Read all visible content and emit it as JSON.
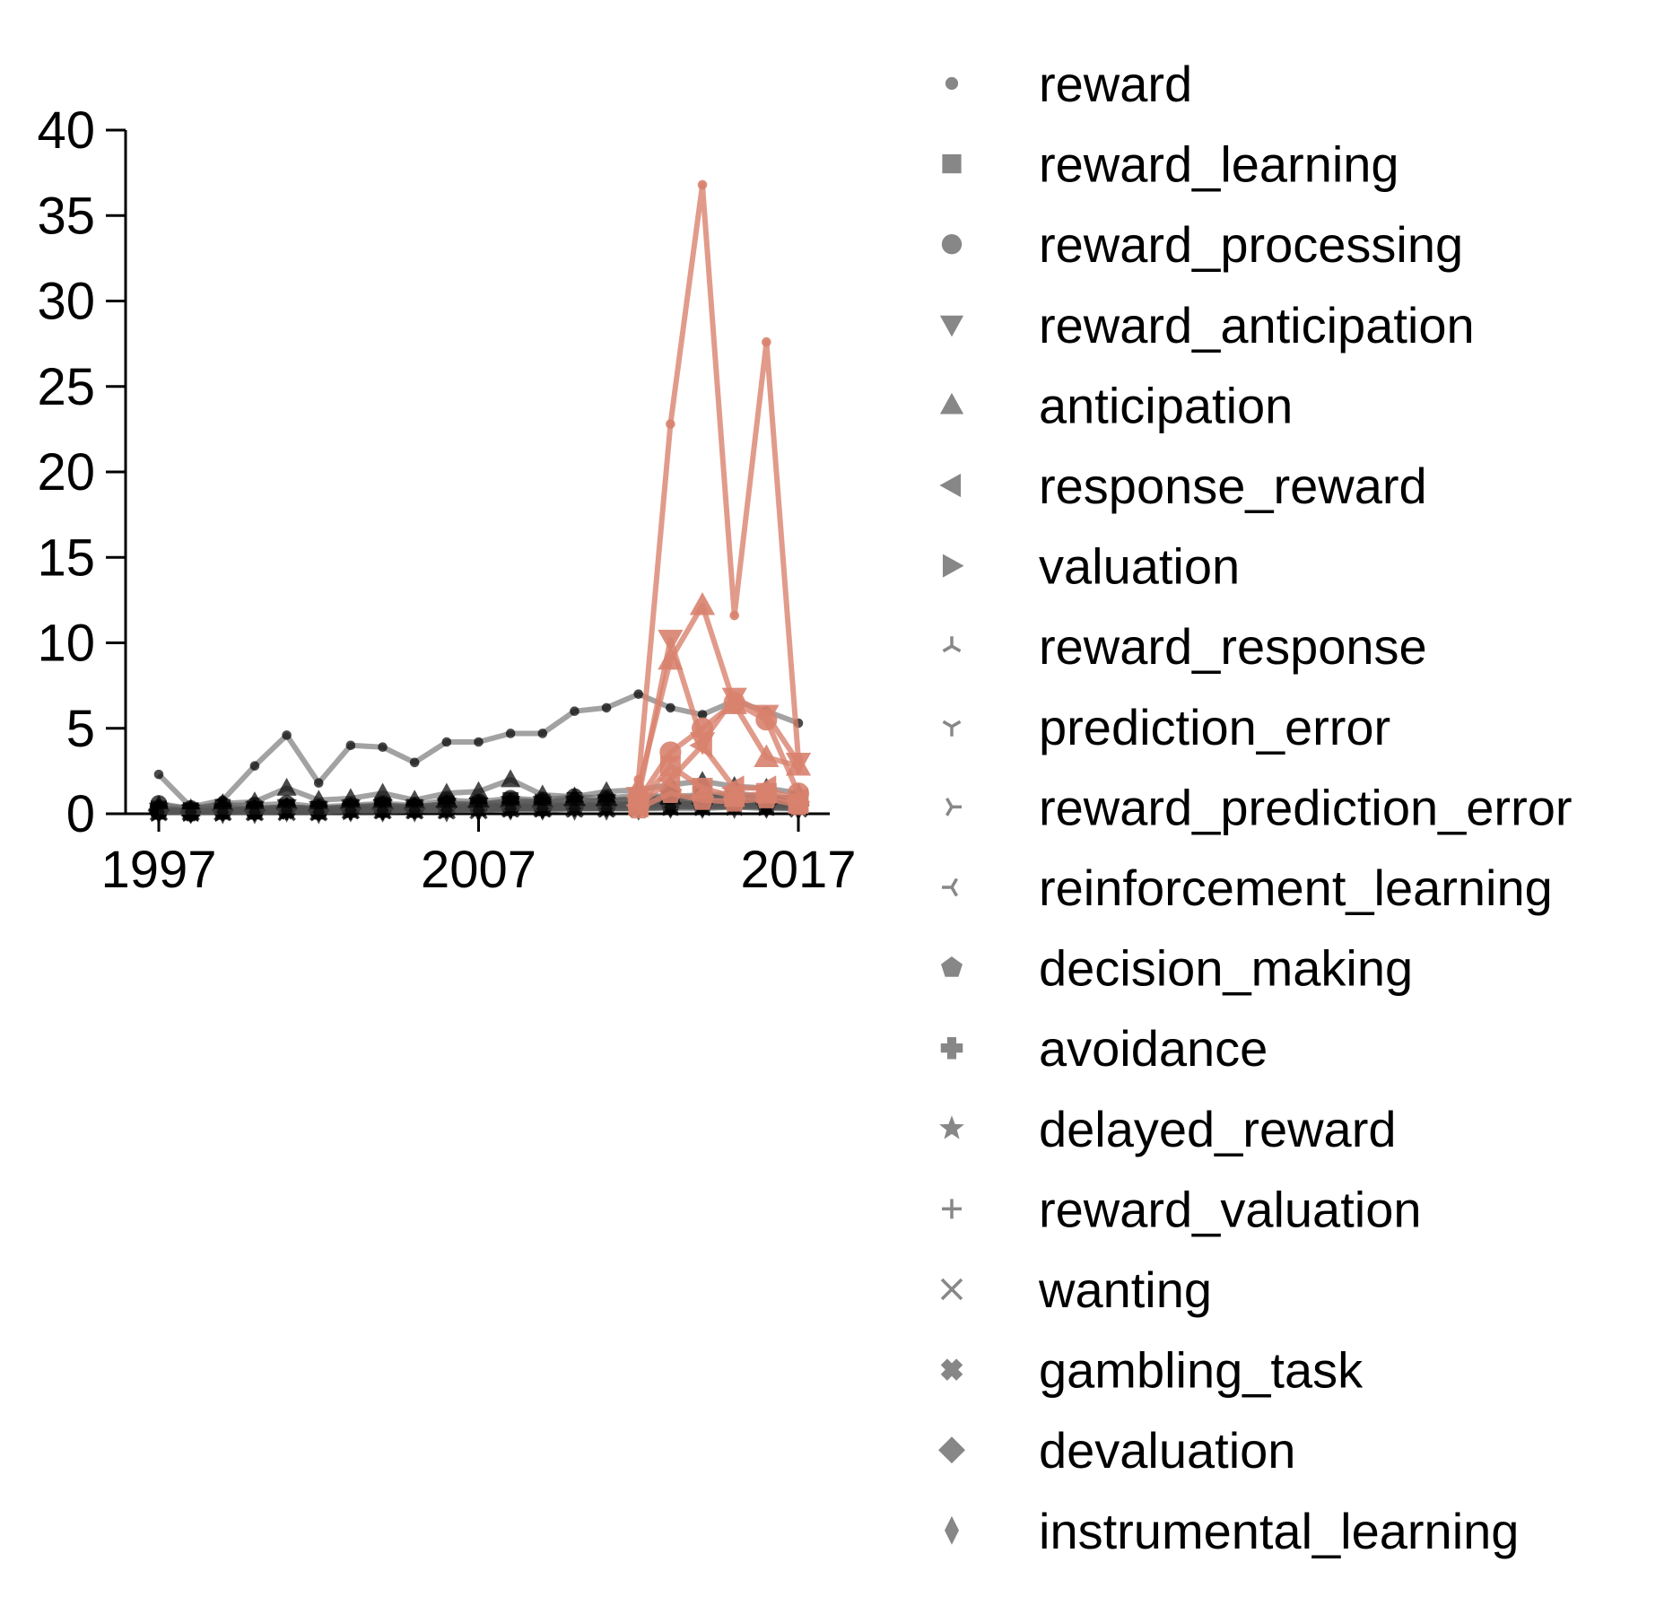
{
  "chart_data": {
    "type": "line",
    "title": "",
    "xlabel": "",
    "ylabel": "",
    "xlim": [
      1997,
      2017
    ],
    "ylim": [
      0,
      40
    ],
    "xticks": [
      1997,
      2007,
      2017
    ],
    "yticks": [
      0,
      5,
      10,
      15,
      20,
      25,
      30,
      35,
      40
    ],
    "grid": false,
    "legend_position": "right",
    "colors": {
      "gray": "#555555",
      "black": "#000000",
      "salmon": "#d9826e"
    },
    "x": [
      1997,
      1998,
      1999,
      2000,
      2001,
      2002,
      2003,
      2004,
      2005,
      2006,
      2007,
      2008,
      2009,
      2010,
      2011,
      2012,
      2013,
      2014,
      2015,
      2016,
      2017
    ],
    "series": [
      {
        "name": "reward",
        "marker": "point",
        "values": [
          2.3,
          0.4,
          0.8,
          2.8,
          4.6,
          1.8,
          4.0,
          3.9,
          3.0,
          4.2,
          4.2,
          4.7,
          4.7,
          6.0,
          6.2,
          7.0,
          6.2,
          5.8,
          6.6,
          6.0,
          5.3
        ]
      },
      {
        "name": "reward_learning",
        "marker": "square",
        "values": [
          0.3,
          0.2,
          0.4,
          0.3,
          0.4,
          0.3,
          0.4,
          0.5,
          0.4,
          0.6,
          0.5,
          0.8,
          0.7,
          0.8,
          0.7,
          0.9,
          0.8,
          0.9,
          1.0,
          0.9,
          0.8
        ]
      },
      {
        "name": "reward_processing",
        "marker": "circle",
        "values": [
          0.6,
          0.3,
          0.5,
          0.5,
          0.6,
          0.4,
          0.5,
          0.6,
          0.5,
          0.8,
          0.7,
          0.9,
          0.8,
          1.0,
          0.9,
          1.1,
          1.0,
          1.1,
          1.2,
          1.0,
          0.9
        ]
      },
      {
        "name": "reward_anticipation",
        "marker": "triangle-down",
        "values": [
          0.2,
          0.1,
          0.2,
          0.3,
          0.4,
          0.3,
          0.4,
          0.4,
          0.4,
          0.5,
          0.5,
          0.6,
          0.6,
          0.6,
          0.7,
          0.8,
          0.9,
          1.0,
          1.1,
          1.0,
          0.9
        ]
      },
      {
        "name": "anticipation",
        "marker": "triangle-up",
        "values": [
          0.5,
          0.3,
          0.6,
          0.7,
          1.5,
          0.8,
          0.9,
          1.2,
          0.8,
          1.2,
          1.3,
          2.0,
          1.1,
          1.0,
          1.3,
          1.4,
          1.7,
          1.9,
          1.6,
          1.5,
          1.2
        ]
      },
      {
        "name": "response_reward",
        "marker": "triangle-left",
        "values": [
          0.2,
          0.1,
          0.2,
          0.2,
          0.3,
          0.2,
          0.3,
          0.3,
          0.3,
          0.4,
          0.4,
          0.5,
          0.4,
          0.5,
          0.5,
          0.6,
          0.6,
          0.6,
          0.7,
          0.6,
          0.6
        ]
      },
      {
        "name": "valuation",
        "marker": "triangle-right",
        "values": [
          0.1,
          0.1,
          0.1,
          0.2,
          0.2,
          0.2,
          0.2,
          0.3,
          0.3,
          0.3,
          0.4,
          0.4,
          0.4,
          0.5,
          0.5,
          0.6,
          0.6,
          0.6,
          0.7,
          0.6,
          0.6
        ]
      },
      {
        "name": "reward_response",
        "marker": "tri-down",
        "values": [
          0.2,
          0.1,
          0.2,
          0.2,
          0.3,
          0.2,
          0.3,
          0.3,
          0.3,
          0.4,
          0.4,
          0.5,
          0.5,
          0.5,
          0.5,
          0.6,
          0.6,
          0.6,
          0.7,
          0.6,
          0.6
        ]
      },
      {
        "name": "prediction_error",
        "marker": "tri-up",
        "values": [
          0.1,
          0.1,
          0.1,
          0.1,
          0.2,
          0.2,
          0.2,
          0.3,
          0.3,
          0.3,
          0.3,
          0.4,
          0.4,
          0.5,
          0.5,
          0.6,
          0.7,
          0.6,
          0.7,
          0.6,
          0.6
        ]
      },
      {
        "name": "reward_prediction_error",
        "marker": "tri-left",
        "values": [
          0.1,
          0.1,
          0.1,
          0.1,
          0.1,
          0.1,
          0.2,
          0.2,
          0.2,
          0.2,
          0.3,
          0.3,
          0.3,
          0.4,
          0.4,
          0.5,
          0.6,
          0.5,
          0.6,
          0.5,
          0.5
        ]
      },
      {
        "name": "reinforcement_learning",
        "marker": "tri-right",
        "values": [
          0.1,
          0.1,
          0.1,
          0.2,
          0.2,
          0.2,
          0.2,
          0.2,
          0.2,
          0.3,
          0.3,
          0.3,
          0.3,
          0.4,
          0.4,
          0.5,
          0.6,
          0.5,
          0.6,
          0.5,
          0.5
        ]
      },
      {
        "name": "decision_making",
        "marker": "pentagon",
        "values": [
          0.3,
          0.2,
          0.3,
          0.3,
          0.4,
          0.3,
          0.4,
          0.5,
          0.4,
          0.6,
          0.6,
          0.7,
          0.7,
          0.8,
          0.8,
          0.9,
          1.0,
          0.9,
          1.0,
          0.9,
          0.8
        ]
      },
      {
        "name": "avoidance",
        "marker": "plus-filled",
        "values": [
          0.2,
          0.1,
          0.2,
          0.2,
          0.3,
          0.2,
          0.3,
          0.3,
          0.3,
          0.4,
          0.4,
          0.5,
          0.4,
          0.5,
          0.5,
          0.6,
          0.6,
          0.6,
          0.7,
          0.6,
          0.6
        ]
      },
      {
        "name": "delayed_reward",
        "marker": "star",
        "values": [
          0.1,
          0.1,
          0.1,
          0.1,
          0.2,
          0.1,
          0.2,
          0.2,
          0.2,
          0.2,
          0.3,
          0.3,
          0.3,
          0.3,
          0.3,
          0.4,
          0.4,
          0.4,
          0.5,
          0.4,
          0.4
        ]
      },
      {
        "name": "reward_valuation",
        "marker": "plus",
        "values": [
          0.1,
          0.1,
          0.1,
          0.1,
          0.1,
          0.1,
          0.1,
          0.1,
          0.2,
          0.2,
          0.2,
          0.2,
          0.2,
          0.3,
          0.3,
          0.3,
          0.3,
          0.3,
          0.4,
          0.3,
          0.3
        ]
      },
      {
        "name": "wanting",
        "marker": "x",
        "values": [
          0.1,
          0.1,
          0.1,
          0.1,
          0.1,
          0.1,
          0.2,
          0.2,
          0.2,
          0.2,
          0.2,
          0.3,
          0.3,
          0.3,
          0.3,
          0.3,
          0.4,
          0.4,
          0.4,
          0.4,
          0.3
        ]
      },
      {
        "name": "gambling_task",
        "marker": "x-filled",
        "values": [
          0.2,
          0.1,
          0.2,
          0.2,
          0.2,
          0.2,
          0.3,
          0.3,
          0.3,
          0.3,
          0.4,
          0.4,
          0.4,
          0.5,
          0.5,
          0.5,
          0.6,
          0.6,
          0.6,
          0.6,
          0.5
        ]
      },
      {
        "name": "devaluation",
        "marker": "diamond",
        "values": [
          0.2,
          0.1,
          0.2,
          0.2,
          0.3,
          0.2,
          0.3,
          0.3,
          0.3,
          0.4,
          0.4,
          0.4,
          0.4,
          0.5,
          0.5,
          0.5,
          0.6,
          0.6,
          0.6,
          0.6,
          0.5
        ]
      },
      {
        "name": "instrumental_learning",
        "marker": "thin-diamond",
        "values": [
          0.1,
          0.1,
          0.1,
          0.1,
          0.2,
          0.1,
          0.2,
          0.2,
          0.2,
          0.2,
          0.2,
          0.3,
          0.3,
          0.3,
          0.3,
          0.3,
          0.4,
          0.4,
          0.4,
          0.4,
          0.3
        ]
      }
    ],
    "highlight_x": [
      2012,
      2013,
      2014,
      2015,
      2016,
      2017
    ],
    "highlight_series": [
      {
        "name": "reward",
        "values": [
          2.0,
          22.8,
          36.8,
          11.6,
          27.6,
          3.2
        ]
      },
      {
        "name": "reward_anticipation",
        "values": [
          1.0,
          10.2,
          4.2,
          6.8,
          5.8,
          3.0
        ]
      },
      {
        "name": "anticipation",
        "values": [
          1.5,
          9.0,
          12.2,
          6.4,
          3.3,
          2.8
        ]
      },
      {
        "name": "reward_processing",
        "values": [
          0.8,
          3.6,
          5.0,
          6.5,
          5.5,
          1.2
        ]
      },
      {
        "name": "response_reward",
        "values": [
          0.5,
          2.0,
          4.0,
          1.5,
          1.5,
          0.8
        ]
      },
      {
        "name": "reward_learning",
        "values": [
          0.5,
          2.8,
          1.5,
          1.0,
          1.2,
          0.6
        ]
      },
      {
        "name": "decision_making",
        "values": [
          0.3,
          1.2,
          0.8,
          0.7,
          0.9,
          0.5
        ]
      }
    ]
  }
}
